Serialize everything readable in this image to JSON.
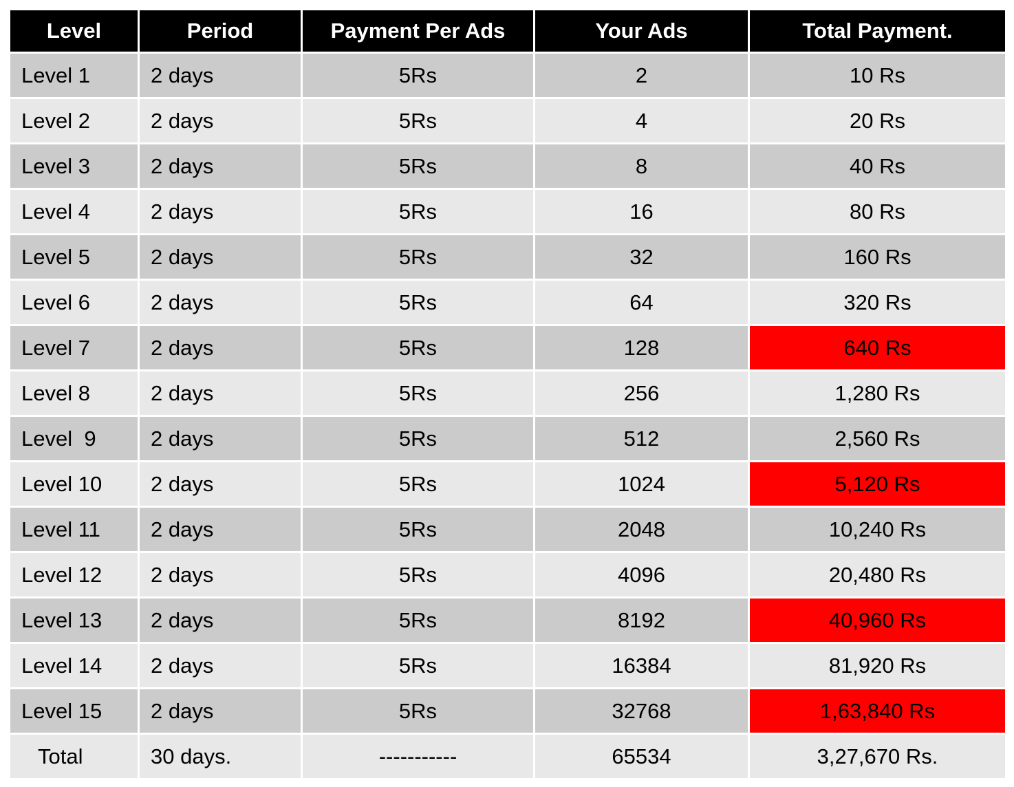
{
  "table": {
    "headers": [
      "Level",
      "Period",
      "Payment Per Ads",
      "Your Ads",
      "Total Payment."
    ],
    "rows": [
      {
        "level": "Level 1",
        "period": "2 days",
        "payment": "5Rs",
        "ads": "2",
        "total": "10 Rs",
        "highlight": false
      },
      {
        "level": "Level 2",
        "period": "2 days",
        "payment": "5Rs",
        "ads": "4",
        "total": "20 Rs",
        "highlight": false
      },
      {
        "level": "Level 3",
        "period": "2 days",
        "payment": "5Rs",
        "ads": "8",
        "total": "40 Rs",
        "highlight": false
      },
      {
        "level": "Level 4",
        "period": "2 days",
        "payment": "5Rs",
        "ads": "16",
        "total": "80 Rs",
        "highlight": false
      },
      {
        "level": "Level 5",
        "period": "2 days",
        "payment": "5Rs",
        "ads": "32",
        "total": "160 Rs",
        "highlight": false
      },
      {
        "level": "Level 6",
        "period": "2 days",
        "payment": "5Rs",
        "ads": "64",
        "total": "320 Rs",
        "highlight": false
      },
      {
        "level": "Level 7",
        "period": "2 days",
        "payment": "5Rs",
        "ads": "128",
        "total": "640 Rs",
        "highlight": true
      },
      {
        "level": "Level 8",
        "period": "2 days",
        "payment": "5Rs",
        "ads": "256",
        "total": "1,280 Rs",
        "highlight": false
      },
      {
        "level": "Level  9",
        "period": "2 days",
        "payment": "5Rs",
        "ads": "512",
        "total": "2,560 Rs",
        "highlight": false
      },
      {
        "level": "Level 10",
        "period": "2 days",
        "payment": "5Rs",
        "ads": "1024",
        "total": "5,120 Rs",
        "highlight": true
      },
      {
        "level": "Level 11",
        "period": "2 days",
        "payment": "5Rs",
        "ads": "2048",
        "total": "10,240 Rs",
        "highlight": false
      },
      {
        "level": "Level 12",
        "period": "2 days",
        "payment": "5Rs",
        "ads": "4096",
        "total": "20,480 Rs",
        "highlight": false
      },
      {
        "level": "Level 13",
        "period": "2 days",
        "payment": "5Rs",
        "ads": "8192",
        "total": "40,960 Rs",
        "highlight": true
      },
      {
        "level": "Level 14",
        "period": "2 days",
        "payment": "5Rs",
        "ads": "16384",
        "total": "81,920 Rs",
        "highlight": false
      },
      {
        "level": "Level 15",
        "period": "2 days",
        "payment": "5Rs",
        "ads": "32768",
        "total": "1,63,840 Rs",
        "highlight": true
      }
    ],
    "total_row": {
      "level": "Total",
      "period": "30 days.",
      "payment": "-----------",
      "ads": "65534",
      "total": "3,27,670 Rs."
    }
  },
  "colors": {
    "header_bg": "#000000",
    "header_text": "#ffffff",
    "row_dark": "#cbcbcb",
    "row_light": "#e8e8e8",
    "highlight": "#ff0000"
  }
}
